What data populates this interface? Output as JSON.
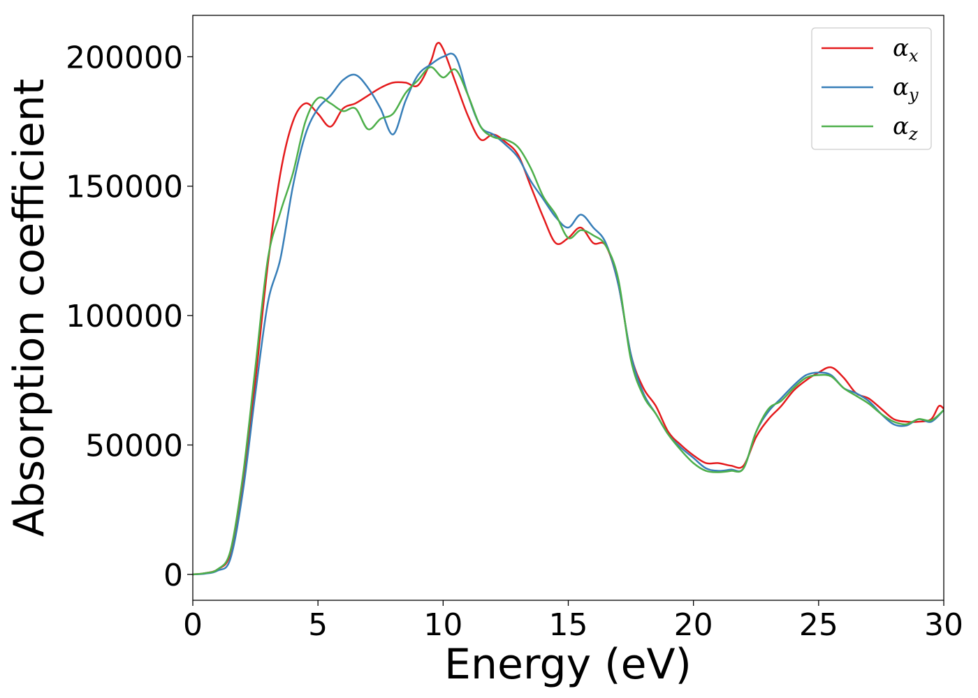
{
  "chart_data": {
    "type": "line",
    "xlabel": "Energy (eV)",
    "ylabel": "Absorption coefficient",
    "xlim": [
      0,
      30
    ],
    "ylim": [
      -10000,
      216000
    ],
    "xticks": [
      "0",
      "5",
      "10",
      "15",
      "20",
      "25",
      "30"
    ],
    "yticks": [
      "0",
      "50000",
      "100000",
      "150000",
      "200000"
    ],
    "grid": false,
    "legend_position": "top-right",
    "series": [
      {
        "name": "α_x",
        "symbol": "α",
        "subscript": "x",
        "color": "#e41a1c",
        "x": [
          0,
          0.5,
          1,
          1.5,
          2,
          2.5,
          3,
          3.5,
          4,
          4.5,
          5,
          5.5,
          6,
          6.5,
          7,
          7.5,
          8,
          8.5,
          9,
          9.5,
          9.75,
          10,
          10.5,
          11,
          11.5,
          12,
          12.5,
          13,
          13.5,
          14,
          14.5,
          15,
          15.5,
          16,
          16.5,
          17,
          17.5,
          18,
          18.5,
          19,
          19.5,
          20,
          20.5,
          21,
          21.5,
          22,
          22.5,
          23,
          23.5,
          24,
          24.5,
          25,
          25.5,
          26,
          26.5,
          27,
          27.5,
          28,
          28.5,
          29,
          29.5,
          29.8,
          30
        ],
        "y": [
          0,
          500,
          2000,
          8000,
          35000,
          75000,
          120000,
          155000,
          175000,
          182000,
          178000,
          173000,
          180000,
          182000,
          185000,
          188000,
          190000,
          190000,
          189000,
          198000,
          205000,
          203000,
          190000,
          177000,
          168000,
          170000,
          167000,
          162000,
          150000,
          138000,
          128000,
          130000,
          134000,
          128000,
          127000,
          112000,
          85000,
          72000,
          65000,
          55000,
          50000,
          46000,
          43000,
          43000,
          42000,
          42000,
          53000,
          60000,
          65000,
          71000,
          75000,
          78000,
          80000,
          76000,
          70000,
          68000,
          64000,
          60000,
          59000,
          59000,
          60000,
          65000,
          64000
        ]
      },
      {
        "name": "α_y",
        "symbol": "α",
        "subscript": "y",
        "color": "#377eb8",
        "x": [
          0,
          0.5,
          1,
          1.5,
          2,
          2.5,
          3,
          3.5,
          4,
          4.5,
          5,
          5.5,
          6,
          6.5,
          7,
          7.5,
          8,
          8.5,
          9,
          9.5,
          10,
          10.5,
          11,
          11.5,
          12,
          12.5,
          13,
          13.5,
          14,
          14.5,
          15,
          15.5,
          16,
          16.5,
          17,
          17.5,
          18,
          18.5,
          19,
          19.5,
          20,
          20.5,
          21,
          21.5,
          22,
          22.5,
          23,
          23.5,
          24,
          24.5,
          25,
          25.5,
          26,
          26.5,
          27,
          27.5,
          28,
          28.5,
          29,
          29.5,
          30
        ],
        "y": [
          0,
          300,
          1500,
          6000,
          32000,
          70000,
          105000,
          122000,
          150000,
          170000,
          180000,
          185000,
          191000,
          193000,
          188000,
          180000,
          170000,
          183000,
          193000,
          197000,
          200000,
          200000,
          185000,
          173000,
          170000,
          166000,
          161000,
          152000,
          145000,
          138000,
          134000,
          139000,
          134000,
          128000,
          112000,
          85000,
          70000,
          62000,
          54000,
          49000,
          45000,
          41000,
          40000,
          40500,
          41000,
          55000,
          63000,
          68000,
          73000,
          77000,
          78000,
          77000,
          72000,
          70000,
          67000,
          62000,
          58000,
          57500,
          60000,
          59000,
          63500
        ]
      },
      {
        "name": "α_z",
        "symbol": "α",
        "subscript": "z",
        "color": "#4daf4a",
        "x": [
          0,
          0.5,
          1,
          1.5,
          2,
          2.5,
          3,
          3.5,
          4,
          4.5,
          5,
          5.5,
          6,
          6.5,
          7,
          7.5,
          8,
          8.5,
          9,
          9.5,
          10,
          10.5,
          11,
          11.5,
          12,
          12.5,
          13,
          13.5,
          14,
          14.5,
          15,
          15.5,
          16,
          16.5,
          17,
          17.5,
          18,
          18.5,
          19,
          19.5,
          20,
          20.5,
          21,
          21.5,
          22,
          22.5,
          23,
          23.5,
          24,
          24.5,
          25,
          25.5,
          26,
          26.5,
          27,
          27.5,
          28,
          28.5,
          29,
          29.5,
          30
        ],
        "y": [
          0,
          500,
          2000,
          9000,
          38000,
          80000,
          122000,
          140000,
          155000,
          175000,
          184000,
          182000,
          179000,
          180000,
          172000,
          176000,
          178000,
          186000,
          191000,
          196000,
          192000,
          195000,
          185000,
          173000,
          169000,
          168000,
          165000,
          157000,
          146000,
          139000,
          130000,
          133000,
          131000,
          127000,
          114000,
          83000,
          69000,
          62000,
          54000,
          48000,
          43000,
          40000,
          39500,
          40000,
          41000,
          55000,
          64000,
          67000,
          72000,
          76000,
          77000,
          76500,
          72000,
          69000,
          66000,
          62000,
          59000,
          58000,
          60000,
          59500,
          63500
        ]
      }
    ]
  }
}
